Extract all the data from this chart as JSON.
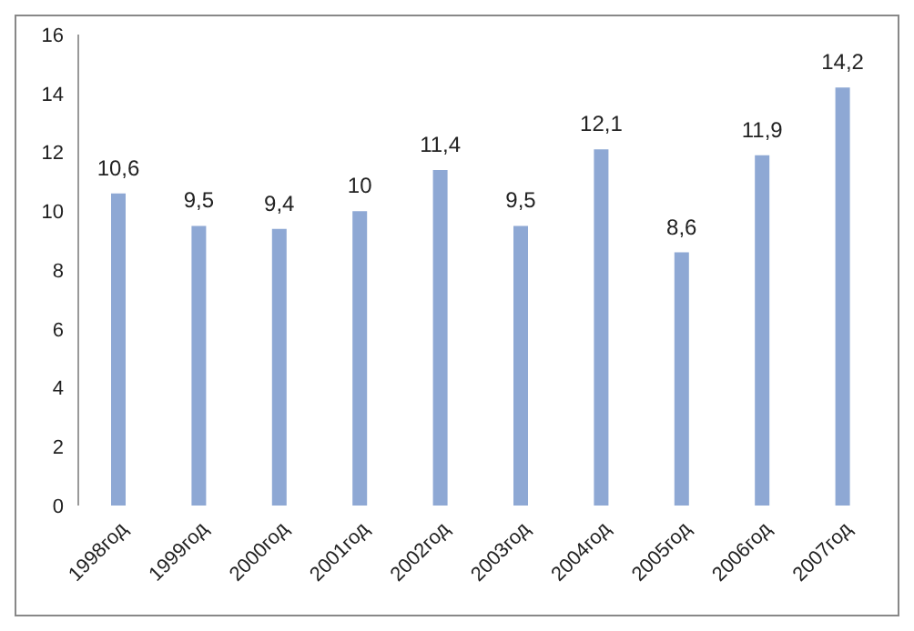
{
  "chart_data": {
    "type": "bar",
    "categories": [
      "1998год",
      "1999год",
      "2000год",
      "2001год",
      "2002год",
      "2003год",
      "2004год",
      "2005год",
      "2006год",
      "2007год"
    ],
    "values": [
      10.6,
      9.5,
      9.4,
      10,
      11.4,
      9.5,
      12.1,
      8.6,
      11.9,
      14.2
    ],
    "value_labels": [
      "10,6",
      "9,5",
      "9,4",
      "10",
      "11,4",
      "9,5",
      "12,1",
      "8,6",
      "11,9",
      "14,2"
    ],
    "color": "#8ea8d4",
    "ylim": [
      0,
      16
    ],
    "yticks": [
      0,
      2,
      4,
      6,
      8,
      10,
      12,
      14,
      16
    ],
    "grid": false,
    "legend": false
  }
}
